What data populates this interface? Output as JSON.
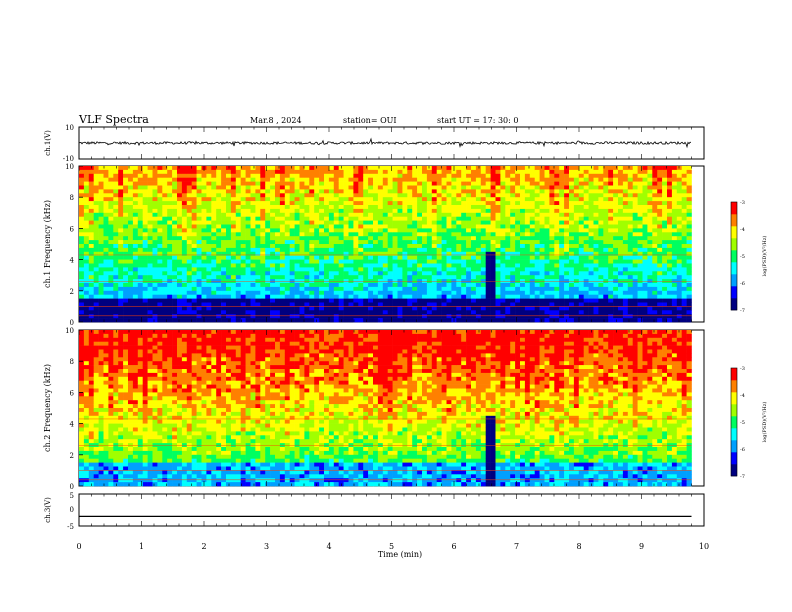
{
  "header": {
    "title": "VLF Spectra",
    "date": "Mar.8 , 2024",
    "station": "station= OUI",
    "start": "start UT = 17: 30: 0"
  },
  "colors": {
    "scale": [
      "#000080",
      "#0000ff",
      "#00a0ff",
      "#00ffff",
      "#00ff60",
      "#a0ff00",
      "#ffff00",
      "#ff8000",
      "#ff0000",
      "#ffffff"
    ]
  },
  "chart_data": [
    {
      "type": "line",
      "id": "ch1-waveform",
      "ylabel": "ch.1(V)",
      "ylim": [
        -10,
        10
      ],
      "yticks": [
        "10",
        "-10"
      ],
      "x": [
        0,
        9.8
      ],
      "values": [
        0,
        0
      ],
      "note_visual": "noisy waveform centered near 0 V with amplitude about 1 V"
    },
    {
      "type": "heatmap",
      "id": "ch1-spectrogram",
      "ylabel": "ch.1 Frequency (kHz)",
      "ylim": [
        0,
        10
      ],
      "yticks": [
        "0",
        "2",
        "4",
        "6",
        "8",
        "10"
      ],
      "xlim": [
        0,
        9.8
      ],
      "colorbar": {
        "label": "log(PSD)(V²/Hz)",
        "range": [
          -7,
          -3
        ],
        "ticks": [
          "-3",
          "-4",
          "-5",
          "-6",
          "-7"
        ]
      },
      "blackout_min": 6.55,
      "low_band_level": -6.5,
      "high_band_level": -3.8
    },
    {
      "type": "heatmap",
      "id": "ch2-spectrogram",
      "ylabel": "ch.2 Frequency (kHz)",
      "ylim": [
        0,
        10
      ],
      "yticks": [
        "0",
        "2",
        "4",
        "6",
        "8",
        "10"
      ],
      "xlim": [
        0,
        9.8
      ],
      "colorbar": {
        "label": "log(PSD)(V²/Hz)",
        "range": [
          -7,
          -3
        ],
        "ticks": [
          "-3",
          "-4",
          "-5",
          "-6",
          "-7"
        ]
      },
      "blackout_min": 6.55,
      "low_band_level": -5.5,
      "high_band_level": -3.2
    },
    {
      "type": "line",
      "id": "ch3-waveform",
      "ylabel": "ch.3(V)",
      "ylim": [
        -5,
        5
      ],
      "yticks": [
        "5",
        "0",
        "-5"
      ],
      "x": [
        0,
        9.8
      ],
      "values": [
        -2,
        -2
      ]
    }
  ],
  "xaxis": {
    "label": "Time (min)",
    "ticks": [
      "0",
      "1",
      "2",
      "3",
      "4",
      "5",
      "6",
      "7",
      "8",
      "9",
      "10"
    ],
    "xlim": [
      0,
      10
    ]
  }
}
